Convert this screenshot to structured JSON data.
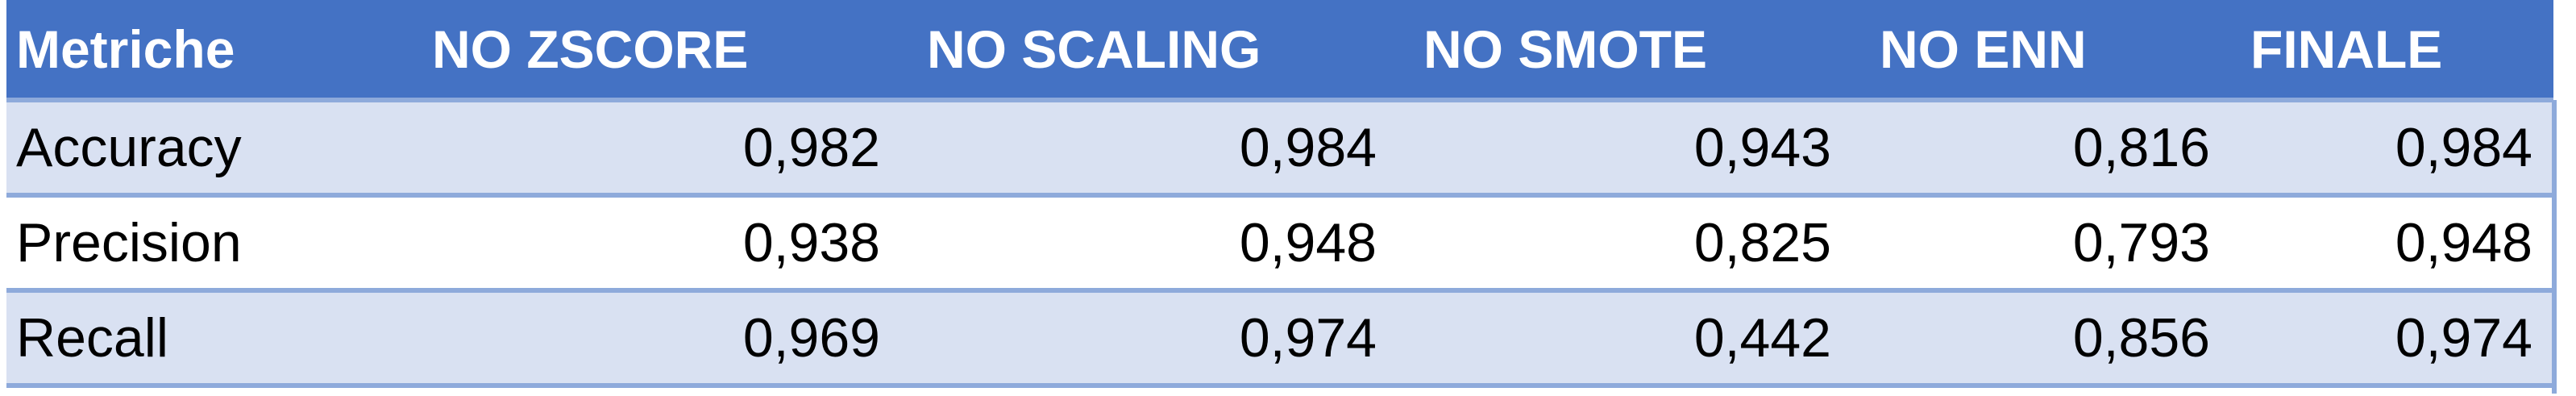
{
  "table": {
    "headers": [
      "Metriche",
      "NO ZSCORE",
      "NO SCALING",
      "NO SMOTE",
      "NO ENN",
      "FINALE"
    ],
    "rows": [
      {
        "metric": "Accuracy",
        "values": [
          "0,982",
          "0,984",
          "0,943",
          "0,816",
          "0,984"
        ]
      },
      {
        "metric": "Precision",
        "values": [
          "0,938",
          "0,948",
          "0,825",
          "0,793",
          "0,948"
        ]
      },
      {
        "metric": "Recall",
        "values": [
          "0,969",
          "0,974",
          "0,442",
          "0,856",
          "0,974"
        ]
      }
    ]
  },
  "colors": {
    "header_bg": "#4472c4",
    "header_text": "#ffffff",
    "band_row": "#d9e1f2",
    "plain_row": "#ffffff",
    "border": "#8eaadb"
  }
}
